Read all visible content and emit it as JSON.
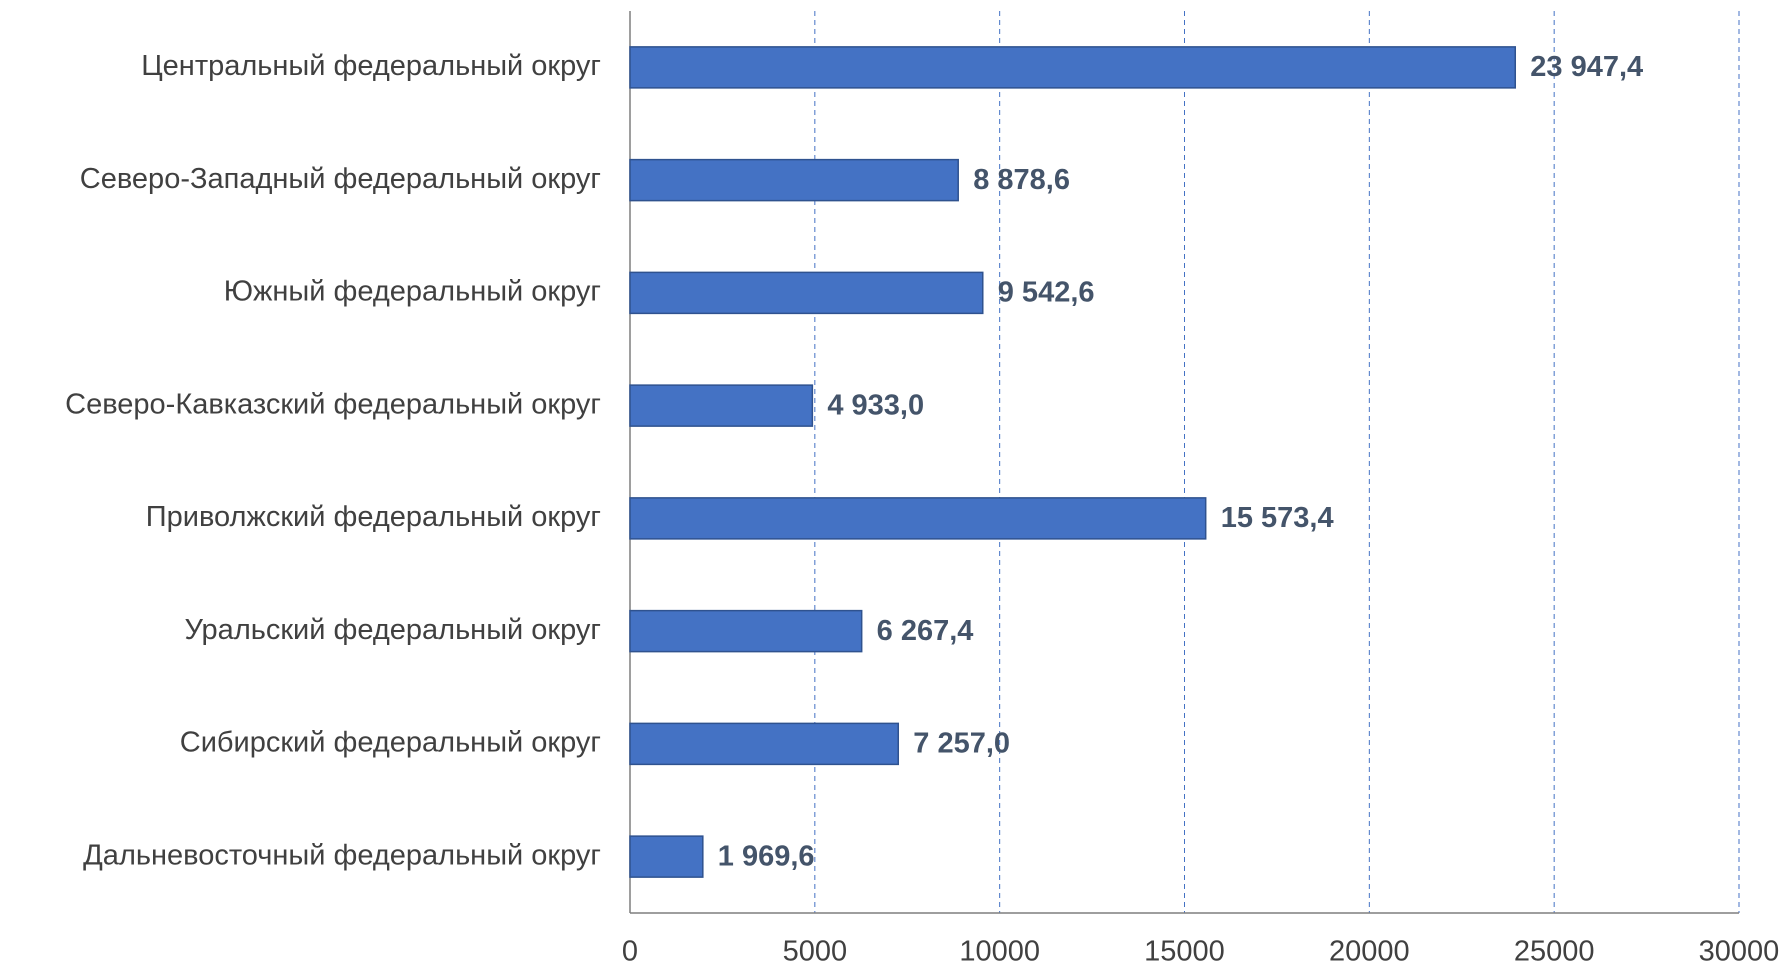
{
  "chart_data": {
    "type": "bar",
    "orientation": "horizontal",
    "categories": [
      "Центральный федеральный округ",
      "Северо-Западный федеральный округ",
      "Южный федеральный округ",
      "Северо-Кавказский федеральный округ",
      "Приволжский федеральный округ",
      "Уральский федеральный округ",
      "Сибирский федеральный округ",
      "Дальневосточный федеральный округ"
    ],
    "values": [
      23947.4,
      8878.6,
      9542.6,
      4933.0,
      15573.4,
      6267.4,
      7257.0,
      1969.6
    ],
    "value_labels": [
      "23 947,4",
      "8 878,6",
      "9 542,6",
      "4 933,0",
      "15 573,4",
      "6 267,4",
      "7 257,0",
      "1 969,6"
    ],
    "color": "#4472c4",
    "xlim": [
      0,
      30000
    ],
    "xticks": [
      0,
      5000,
      10000,
      15000,
      20000,
      25000,
      30000
    ],
    "grid": true
  }
}
